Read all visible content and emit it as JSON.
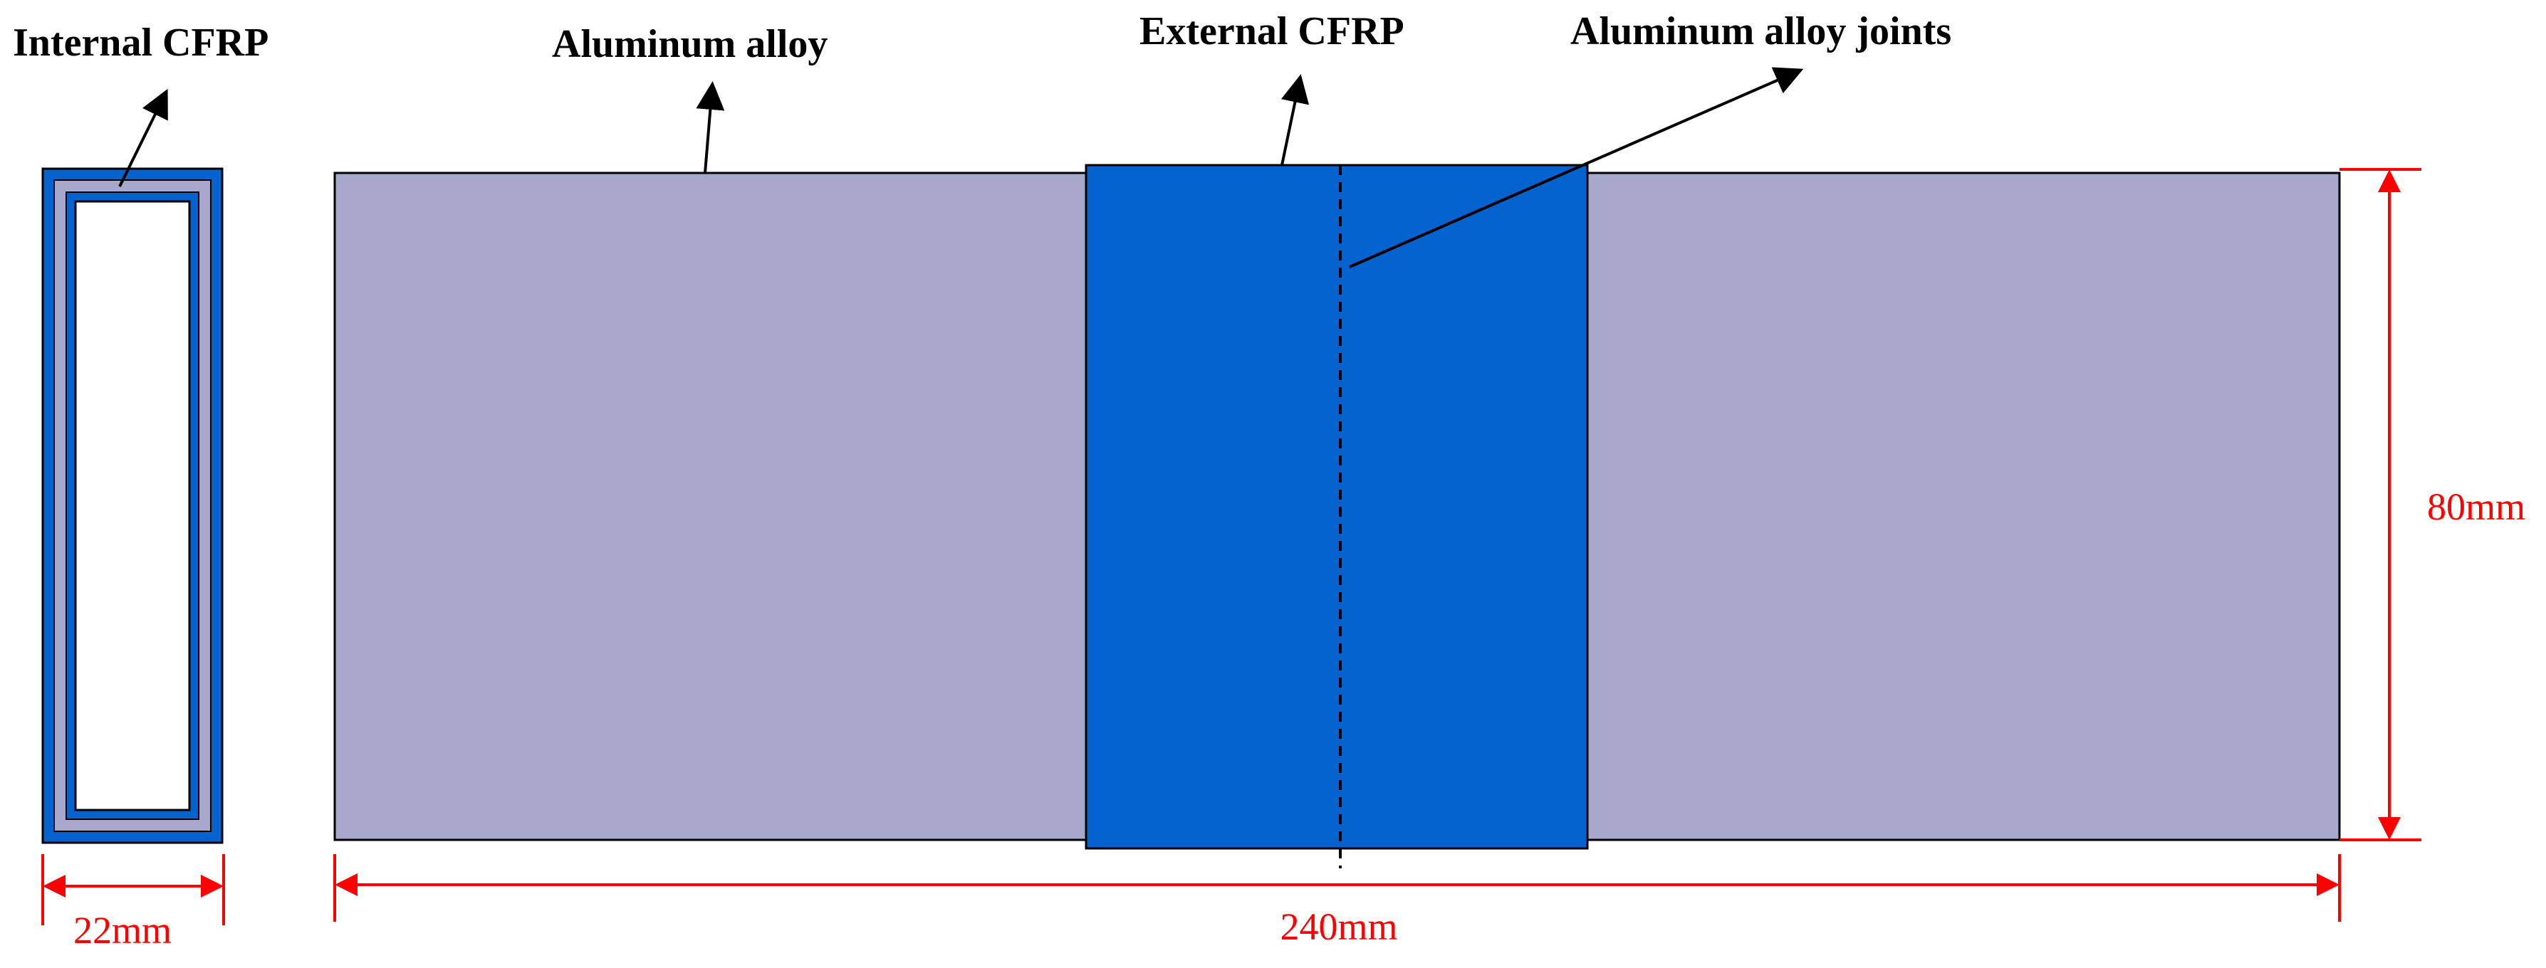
{
  "labels": {
    "internal_cfrp": "Internal CFRP",
    "aluminum_alloy": "Aluminum alloy",
    "external_cfrp": "External CFRP",
    "aluminum_alloy_joints": "Aluminum alloy joints"
  },
  "dimensions": {
    "width_section": "22mm",
    "length": "240mm",
    "height": "80mm"
  },
  "colors": {
    "aluminum": "#a8a8cc",
    "cfrp": "#0563d0",
    "dimension": "#ff0000",
    "outline": "#000000"
  }
}
